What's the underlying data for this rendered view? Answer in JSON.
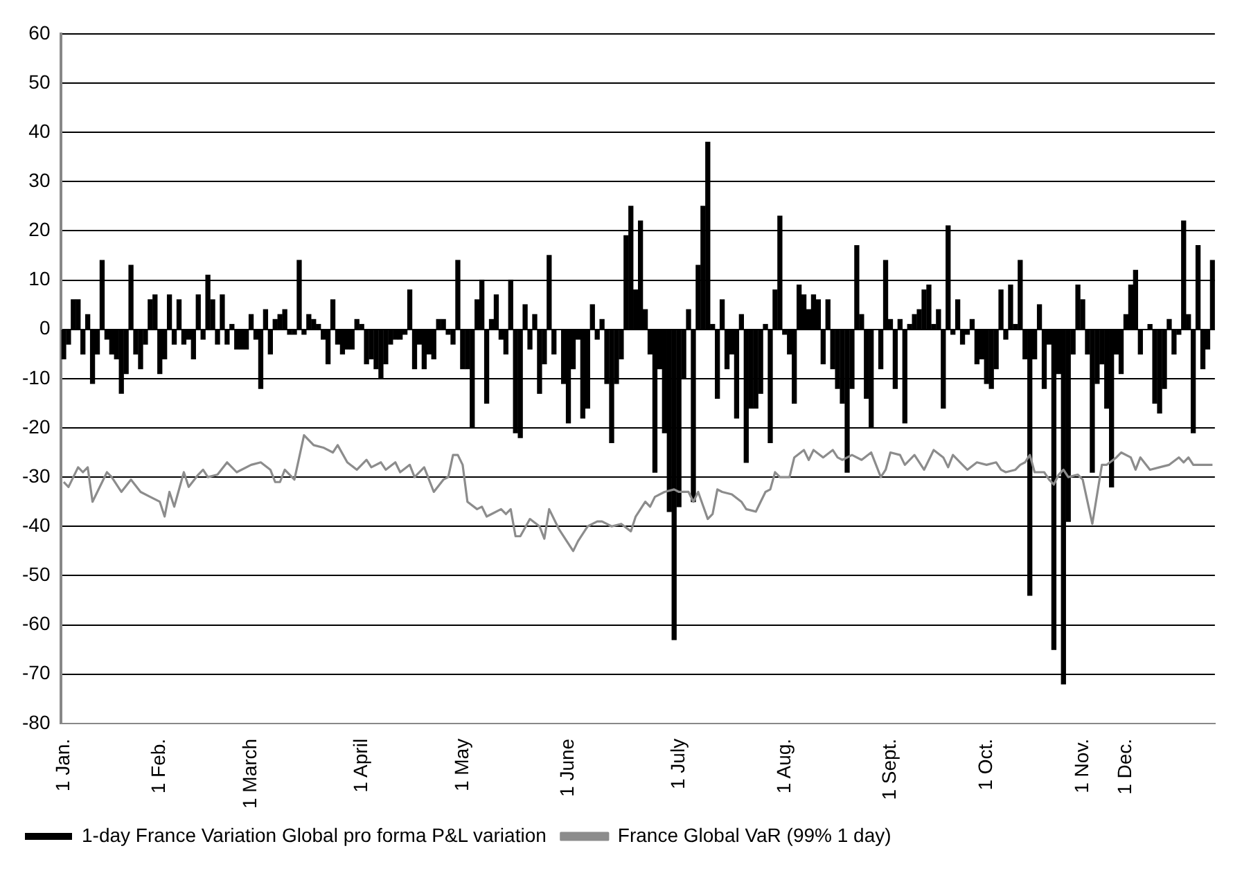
{
  "chart_data": {
    "type": "bar",
    "ylim": [
      -80,
      60
    ],
    "categories": [
      "1 Jan.",
      null,
      null,
      null,
      null,
      null,
      null,
      null,
      null,
      null,
      null,
      null,
      null,
      null,
      null,
      null,
      null,
      null,
      null,
      null,
      "1 Feb.",
      null,
      null,
      null,
      null,
      null,
      null,
      null,
      null,
      null,
      null,
      null,
      null,
      null,
      null,
      null,
      null,
      null,
      null,
      "1 March",
      null,
      null,
      null,
      null,
      null,
      null,
      null,
      null,
      null,
      null,
      null,
      null,
      null,
      null,
      null,
      null,
      null,
      null,
      null,
      null,
      null,
      null,
      "1 April",
      null,
      null,
      null,
      null,
      null,
      null,
      null,
      null,
      null,
      null,
      null,
      null,
      null,
      null,
      null,
      null,
      null,
      null,
      null,
      null,
      "1 May",
      null,
      null,
      null,
      null,
      null,
      null,
      null,
      null,
      null,
      null,
      null,
      null,
      null,
      null,
      null,
      null,
      null,
      null,
      null,
      null,
      null,
      "1 June",
      null,
      null,
      null,
      null,
      null,
      null,
      null,
      null,
      null,
      null,
      null,
      null,
      null,
      null,
      null,
      null,
      null,
      null,
      null,
      null,
      null,
      null,
      "1 July",
      null,
      null,
      null,
      null,
      null,
      null,
      null,
      null,
      null,
      null,
      null,
      null,
      null,
      null,
      null,
      null,
      null,
      null,
      null,
      null,
      null,
      "1 Aug.",
      null,
      null,
      null,
      null,
      null,
      null,
      null,
      null,
      null,
      null,
      null,
      null,
      null,
      null,
      null,
      null,
      null,
      null,
      null,
      null,
      null,
      "1 Sept.",
      null,
      null,
      null,
      null,
      null,
      null,
      null,
      null,
      null,
      null,
      null,
      null,
      null,
      null,
      null,
      null,
      null,
      null,
      null,
      "1 Oct.",
      null,
      null,
      null,
      null,
      null,
      null,
      null,
      null,
      null,
      null,
      null,
      null,
      null,
      null,
      null,
      null,
      null,
      null,
      null,
      "1 Nov.",
      null,
      null,
      null,
      null,
      null,
      null,
      null,
      null,
      "1 Dec.",
      null,
      null,
      null,
      null,
      null,
      null,
      null,
      null,
      null,
      null,
      null,
      null,
      null,
      null,
      null,
      null,
      null,
      null
    ],
    "yticks": [
      -80,
      -70,
      -60,
      -50,
      -40,
      -30,
      -20,
      -10,
      0,
      10,
      20,
      30,
      40,
      50,
      60
    ],
    "grid": "y",
    "legend": "bottom",
    "series": [
      {
        "name": "1-day France Variation Global pro forma P&L variation",
        "color": "#000000",
        "values": [
          -6,
          -3,
          6,
          6,
          -5,
          3,
          -11,
          -5,
          14,
          -2,
          -5,
          -6,
          -13,
          -9,
          13,
          -5,
          -8,
          -3,
          6,
          7,
          -9,
          -6,
          7,
          -3,
          6,
          -3,
          -2,
          -6,
          7,
          -2,
          11,
          6,
          -3,
          7,
          -3,
          1,
          -4,
          -4,
          -4,
          3,
          -2,
          -12,
          4,
          -5,
          2,
          3,
          4,
          -1,
          -1,
          14,
          -1,
          3,
          2,
          1,
          -2,
          -7,
          6,
          -3,
          -5,
          -4,
          -4,
          2,
          1,
          -7,
          -6,
          -8,
          -10,
          -7,
          -3,
          -2,
          -2,
          -1,
          8,
          -8,
          -3,
          -8,
          -5,
          -6,
          2,
          2,
          -1,
          -3,
          14,
          -8,
          -8,
          -20,
          6,
          10,
          -15,
          2,
          7,
          -2,
          -5,
          10,
          -21,
          -22,
          5,
          -4,
          3,
          -13,
          -7,
          15,
          -5,
          0,
          -11,
          -19,
          -8,
          -2,
          -18,
          -16,
          5,
          -2,
          2,
          -11,
          -23,
          -11,
          -6,
          19,
          25,
          8,
          22,
          4,
          -5,
          -29,
          -8,
          -21,
          -37,
          -63,
          -36,
          -10,
          4,
          -35,
          13,
          25,
          38,
          1,
          -14,
          6,
          -8,
          -5,
          -18,
          3,
          -27,
          -16,
          -16,
          -13,
          1,
          -23,
          8,
          23,
          -1,
          -5,
          -15,
          9,
          7,
          4,
          7,
          6,
          -7,
          6,
          -8,
          -12,
          -15,
          -29,
          -12,
          17,
          3,
          -14,
          -20,
          0,
          -8,
          14,
          2,
          -12,
          2,
          -19,
          1,
          3,
          4,
          8,
          9,
          1,
          4,
          -16,
          21,
          -1,
          6,
          -3,
          -1,
          2,
          -7,
          -6,
          -11,
          -12,
          -8,
          8,
          -2,
          9,
          1,
          14,
          -6,
          -54,
          -6,
          5,
          -12,
          -3,
          -65,
          -9,
          -72,
          -39,
          -5,
          9,
          6,
          -5,
          -29,
          -11,
          -7,
          -16,
          -32,
          -5,
          -9,
          3,
          9,
          12,
          -5,
          0,
          1,
          -15,
          -17,
          -12,
          2,
          -5,
          -1,
          22,
          3,
          -21,
          17,
          -8,
          -4,
          14
        ]
      },
      {
        "name": "France Global VaR (99% 1 day)",
        "type": "line",
        "color": "#8c8c8c",
        "values": [
          -31,
          -32,
          null,
          -28,
          -29,
          -28,
          -35,
          null,
          -31,
          -29,
          -30,
          null,
          -33,
          null,
          -30.5,
          null,
          -33,
          null,
          -34,
          null,
          -35,
          -38,
          -33,
          -36,
          null,
          -29,
          -32,
          null,
          -29.5,
          -28.5,
          -30,
          null,
          -29.5,
          null,
          -27,
          null,
          -29,
          null,
          null,
          -27.5,
          null,
          -27,
          null,
          -28.5,
          -31,
          -31,
          -28.5,
          -29.5,
          -30.5,
          null,
          -21.5,
          null,
          -23.5,
          null,
          -24,
          null,
          -25,
          -23.5,
          null,
          -27,
          null,
          -28.5,
          null,
          -26.5,
          -28,
          null,
          -27,
          -28.5,
          null,
          -27,
          -29,
          null,
          -27.5,
          -30,
          null,
          -28,
          null,
          -33,
          null,
          -30.5,
          -30,
          -25.5,
          -25.5,
          -27.5,
          -35,
          null,
          -36.5,
          -36,
          -38,
          -37.5,
          null,
          -36.5,
          -37.5,
          -36.5,
          -42,
          -42,
          null,
          -38.5,
          null,
          -40,
          -42.5,
          -36.5,
          null,
          -40.5,
          null,
          null,
          -45,
          -43,
          null,
          -40,
          null,
          -39,
          -39,
          null,
          -40,
          null,
          -39.5,
          null,
          -41,
          -38,
          null,
          -35,
          -36,
          -34,
          null,
          -33,
          null,
          -32.5,
          -33,
          null,
          -33,
          -35,
          -33,
          null,
          -38.5,
          -37.5,
          -32.5,
          -33,
          null,
          -33.5,
          null,
          -35,
          -36.5,
          null,
          -37,
          null,
          -33,
          -32.5,
          -29,
          -30,
          null,
          -30,
          -26,
          null,
          -24.5,
          -26.5,
          -24.5,
          null,
          -26,
          null,
          -24.5,
          -26,
          -26.5,
          null,
          -25.5,
          null,
          -26.5,
          null,
          -25,
          null,
          -30,
          -28.5,
          -25,
          null,
          -25.5,
          -27.5,
          null,
          -25.5,
          null,
          -28.5,
          null,
          -24.5,
          null,
          -26,
          -28,
          -25.5,
          null,
          -27.5,
          -28.5,
          null,
          -27,
          null,
          -27.5,
          null,
          -27,
          -28.5,
          -29,
          null,
          -28.5,
          -27.5,
          -27,
          -25.5,
          -29,
          null,
          -29,
          -30.5,
          -31.5,
          -29.5,
          -28.5,
          -30,
          null,
          -29.5,
          -30.5,
          null,
          -39.5,
          null,
          -27.5,
          -27.5,
          null,
          -26,
          -25,
          null,
          -26,
          -28.5,
          -26,
          null,
          -28.5,
          null,
          -28,
          null,
          -27.5,
          null,
          -26,
          -27,
          -26,
          -27.5,
          null,
          -27.5,
          null,
          -27.5
        ]
      }
    ]
  }
}
